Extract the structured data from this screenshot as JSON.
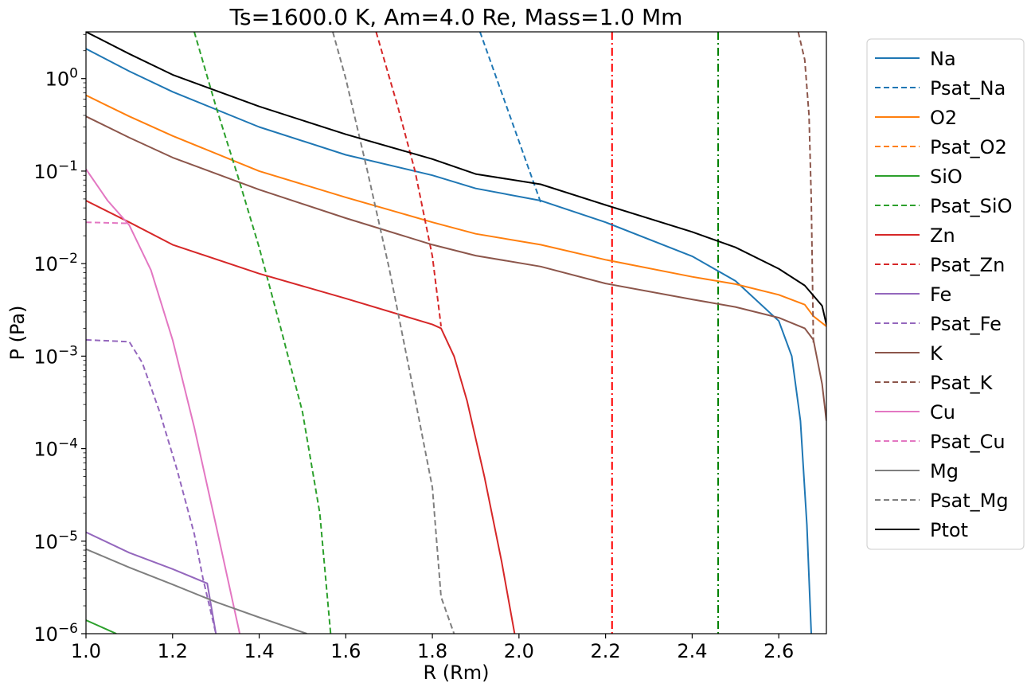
{
  "chart_data": {
    "type": "line",
    "title": "Ts=1600.0 K, Am=4.0 Re, Mass=1.0 Mm",
    "xlabel": "R (Rm)",
    "ylabel": "P (Pa)",
    "xlim": [
      1.0,
      2.71
    ],
    "ylim": [
      1e-06,
      3.2
    ],
    "yscale": "log",
    "grid": false,
    "legend_position": "outside-right",
    "x_ticks": [
      1.0,
      1.2,
      1.4,
      1.6,
      1.8,
      2.0,
      2.2,
      2.4,
      2.6
    ],
    "x_tick_labels": [
      "1.0",
      "1.2",
      "1.4",
      "1.6",
      "1.8",
      "2.0",
      "2.2",
      "2.4",
      "2.6"
    ],
    "y_ticks": [
      {
        "value": 1e-06,
        "base": "10",
        "exp": "−6"
      },
      {
        "value": 1e-05,
        "base": "10",
        "exp": "−5"
      },
      {
        "value": 0.0001,
        "base": "10",
        "exp": "−4"
      },
      {
        "value": 0.001,
        "base": "10",
        "exp": "−3"
      },
      {
        "value": 0.01,
        "base": "10",
        "exp": "−2"
      },
      {
        "value": 0.1,
        "base": "10",
        "exp": "−1"
      },
      {
        "value": 1,
        "base": "10",
        "exp": "0"
      }
    ],
    "vlines": [
      {
        "x": 2.215,
        "color": "#ff0000",
        "dash": "dashdot"
      },
      {
        "x": 2.46,
        "color": "#008000",
        "dash": "dashdot"
      }
    ],
    "series": [
      {
        "name": "Na",
        "color": "#1f77b4",
        "dash": "solid",
        "points": [
          [
            1.0,
            2.1
          ],
          [
            1.1,
            1.2
          ],
          [
            1.2,
            0.72
          ],
          [
            1.4,
            0.3
          ],
          [
            1.6,
            0.15
          ],
          [
            1.8,
            0.09
          ],
          [
            1.9,
            0.065
          ],
          [
            2.05,
            0.048
          ],
          [
            2.2,
            0.028
          ],
          [
            2.4,
            0.012
          ],
          [
            2.5,
            0.0065
          ],
          [
            2.6,
            0.0024
          ],
          [
            2.63,
            0.001
          ],
          [
            2.65,
            0.0002
          ],
          [
            2.665,
            1.5e-05
          ],
          [
            2.675,
            1e-06
          ]
        ]
      },
      {
        "name": "Psat_Na",
        "color": "#1f77b4",
        "dash": "dashed",
        "points": [
          [
            1.91,
            3.2
          ],
          [
            2.05,
            0.046
          ]
        ]
      },
      {
        "name": "O2",
        "color": "#ff7f0e",
        "dash": "solid",
        "points": [
          [
            1.0,
            0.66
          ],
          [
            1.1,
            0.39
          ],
          [
            1.2,
            0.24
          ],
          [
            1.4,
            0.1
          ],
          [
            1.6,
            0.052
          ],
          [
            1.8,
            0.028
          ],
          [
            1.9,
            0.021
          ],
          [
            2.05,
            0.016
          ],
          [
            2.2,
            0.011
          ],
          [
            2.4,
            0.0072
          ],
          [
            2.5,
            0.006
          ],
          [
            2.6,
            0.0046
          ],
          [
            2.66,
            0.0036
          ],
          [
            2.68,
            0.0027
          ],
          [
            2.71,
            0.0021
          ]
        ]
      },
      {
        "name": "Psat_O2",
        "color": "#ff7f0e",
        "dash": "dashed",
        "points": []
      },
      {
        "name": "SiO",
        "color": "#2ca02c",
        "dash": "solid",
        "points": [
          [
            1.0,
            1.4e-06
          ],
          [
            1.07,
            1e-06
          ]
        ]
      },
      {
        "name": "Psat_SiO",
        "color": "#2ca02c",
        "dash": "dashed",
        "points": [
          [
            1.25,
            3.2
          ],
          [
            1.3,
            0.5
          ],
          [
            1.35,
            0.09
          ],
          [
            1.4,
            0.015
          ],
          [
            1.45,
            0.002
          ],
          [
            1.5,
            0.00025
          ],
          [
            1.54,
            2e-05
          ],
          [
            1.565,
            1e-06
          ]
        ]
      },
      {
        "name": "Zn",
        "color": "#d62728",
        "dash": "solid",
        "points": [
          [
            1.0,
            0.048
          ],
          [
            1.1,
            0.028
          ],
          [
            1.2,
            0.016
          ],
          [
            1.4,
            0.0078
          ],
          [
            1.6,
            0.0042
          ],
          [
            1.8,
            0.0022
          ],
          [
            1.82,
            0.002
          ],
          [
            1.85,
            0.001
          ],
          [
            1.88,
            0.00033
          ],
          [
            1.92,
            5e-05
          ],
          [
            1.96,
            6e-06
          ],
          [
            1.99,
            1e-06
          ]
        ]
      },
      {
        "name": "Psat_Zn",
        "color": "#d62728",
        "dash": "dashed",
        "points": [
          [
            1.67,
            3.2
          ],
          [
            1.72,
            0.5
          ],
          [
            1.76,
            0.1
          ],
          [
            1.8,
            0.012
          ],
          [
            1.82,
            0.0021
          ]
        ]
      },
      {
        "name": "Fe",
        "color": "#9467bd",
        "dash": "solid",
        "points": [
          [
            1.0,
            1.25e-05
          ],
          [
            1.1,
            7.5e-06
          ],
          [
            1.2,
            5e-06
          ],
          [
            1.28,
            3.5e-06
          ],
          [
            1.3,
            1e-06
          ]
        ]
      },
      {
        "name": "Psat_Fe",
        "color": "#9467bd",
        "dash": "dashed",
        "points": [
          [
            1.0,
            0.0015
          ],
          [
            1.1,
            0.00143
          ],
          [
            1.13,
            0.00085
          ],
          [
            1.17,
            0.00025
          ],
          [
            1.21,
            6e-05
          ],
          [
            1.25,
            1.2e-05
          ],
          [
            1.27,
            4e-06
          ],
          [
            1.3,
            1e-06
          ]
        ]
      },
      {
        "name": "K",
        "color": "#8c564b",
        "dash": "solid",
        "points": [
          [
            1.0,
            0.39
          ],
          [
            1.1,
            0.23
          ],
          [
            1.2,
            0.14
          ],
          [
            1.4,
            0.063
          ],
          [
            1.6,
            0.031
          ],
          [
            1.8,
            0.016
          ],
          [
            1.9,
            0.0122
          ],
          [
            2.05,
            0.0093
          ],
          [
            2.2,
            0.0061
          ],
          [
            2.4,
            0.0041
          ],
          [
            2.5,
            0.0034
          ],
          [
            2.6,
            0.0026
          ],
          [
            2.66,
            0.002
          ],
          [
            2.68,
            0.0015
          ],
          [
            2.7,
            0.0005
          ],
          [
            2.71,
            0.0002
          ]
        ]
      },
      {
        "name": "Psat_K",
        "color": "#8c564b",
        "dash": "dashed",
        "points": [
          [
            2.645,
            3.2
          ],
          [
            2.66,
            1.6
          ],
          [
            2.67,
            0.4
          ],
          [
            2.675,
            0.05
          ],
          [
            2.68,
            0.0014
          ]
        ]
      },
      {
        "name": "Cu",
        "color": "#e377c2",
        "dash": "solid",
        "points": [
          [
            1.0,
            0.105
          ],
          [
            1.05,
            0.048
          ],
          [
            1.1,
            0.026
          ],
          [
            1.15,
            0.0085
          ],
          [
            1.2,
            0.0015
          ],
          [
            1.25,
            0.00017
          ],
          [
            1.3,
            1.5e-05
          ],
          [
            1.355,
            1e-06
          ]
        ]
      },
      {
        "name": "Psat_Cu",
        "color": "#e377c2",
        "dash": "dashed",
        "points": [
          [
            1.0,
            0.028
          ],
          [
            1.1,
            0.0272
          ]
        ]
      },
      {
        "name": "Mg",
        "color": "#7f7f7f",
        "dash": "solid",
        "points": [
          [
            1.0,
            8.2e-06
          ],
          [
            1.1,
            5.2e-06
          ],
          [
            1.2,
            3.4e-06
          ],
          [
            1.3,
            2.2e-06
          ],
          [
            1.4,
            1.5e-06
          ],
          [
            1.51,
            1e-06
          ]
        ]
      },
      {
        "name": "Psat_Mg",
        "color": "#7f7f7f",
        "dash": "dashed",
        "points": [
          [
            1.57,
            3.2
          ],
          [
            1.6,
            1.0
          ],
          [
            1.65,
            0.1
          ],
          [
            1.7,
            0.009
          ],
          [
            1.75,
            0.0006
          ],
          [
            1.8,
            3.8e-05
          ],
          [
            1.82,
            2.5e-06
          ],
          [
            1.85,
            1e-06
          ]
        ]
      },
      {
        "name": "Ptot",
        "color": "#000000",
        "dash": "solid",
        "points": [
          [
            1.0,
            3.2
          ],
          [
            1.1,
            1.85
          ],
          [
            1.2,
            1.1
          ],
          [
            1.4,
            0.5
          ],
          [
            1.6,
            0.25
          ],
          [
            1.8,
            0.135
          ],
          [
            1.9,
            0.093
          ],
          [
            2.05,
            0.072
          ],
          [
            2.2,
            0.043
          ],
          [
            2.4,
            0.022
          ],
          [
            2.5,
            0.015
          ],
          [
            2.6,
            0.0088
          ],
          [
            2.66,
            0.0058
          ],
          [
            2.7,
            0.0035
          ],
          [
            2.71,
            0.0022
          ]
        ]
      }
    ]
  }
}
